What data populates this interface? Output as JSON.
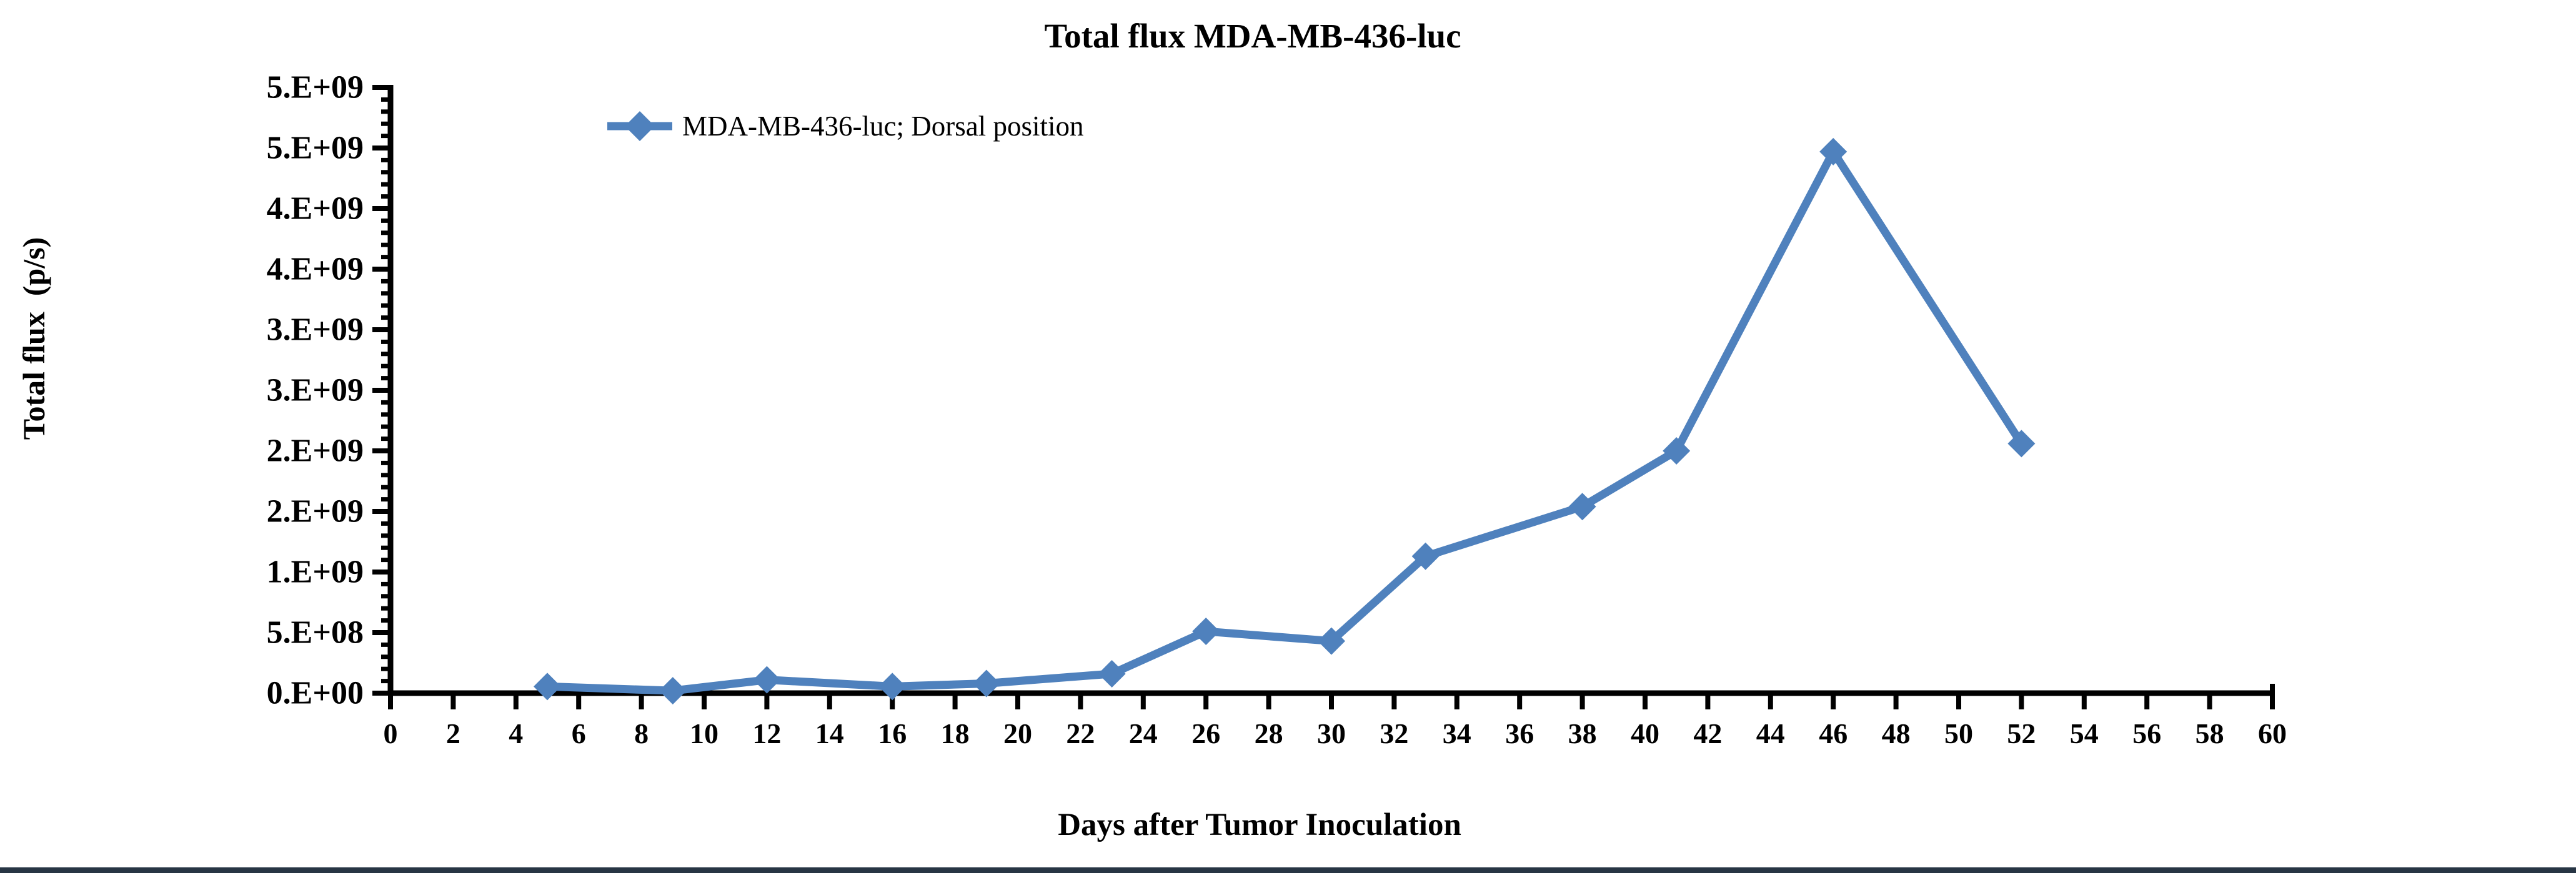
{
  "page": {
    "background_color": "#ffffff",
    "bottom_bar_color": "#273544"
  },
  "chart": {
    "title": "Total flux MDA-MB-436-luc",
    "legend": {
      "label": "MDA-MB-436-luc; Dorsal position",
      "marker": "line-with-diamond"
    },
    "series_color": "#4F81BD",
    "axis_color": "#000000",
    "y_axis_title": "Total flux  (p/s)",
    "x_axis_title": "Days after Tumor Inoculation"
  },
  "chart_data": {
    "type": "line",
    "title": "Total flux MDA-MB-436-luc",
    "xlabel": "Days after Tumor Inoculation",
    "ylabel": "Total flux (p/s)",
    "legend_entries": [
      "MDA-MB-436-luc; Dorsal position"
    ],
    "legend_position": "top-left-inside",
    "grid": false,
    "marker": "diamond",
    "line_color": "#4F81BD",
    "x": [
      5,
      9,
      12,
      16,
      19,
      23,
      26,
      30,
      33,
      38,
      41,
      46,
      52
    ],
    "y": [
      55000000.0,
      20000000.0,
      110000000.0,
      55000000.0,
      80000000.0,
      160000000.0,
      510000000.0,
      430000000.0,
      1130000000.0,
      1540000000.0,
      2000000000.0,
      4470000000.0,
      2060000000.0
    ],
    "xlim": [
      0,
      60
    ],
    "ylim": [
      0,
      5000000000.0
    ],
    "x_tick_values": [
      0,
      2,
      4,
      6,
      8,
      10,
      12,
      14,
      16,
      18,
      20,
      22,
      24,
      26,
      28,
      30,
      32,
      34,
      36,
      38,
      40,
      42,
      44,
      46,
      48,
      50,
      52,
      54,
      56,
      58,
      60
    ],
    "y_tick_values": [
      0,
      500000000.0,
      1000000000.0,
      1500000000.0,
      2000000000.0,
      2500000000.0,
      3000000000.0,
      3500000000.0,
      4000000000.0,
      4500000000.0,
      5000000000.0
    ],
    "y_tick_labels": [
      "0.E+00",
      "5.E+08",
      "1.E+09",
      "2.E+09",
      "2.E+09",
      "3.E+09",
      "3.E+09",
      "4.E+09",
      "4.E+09",
      "5.E+09",
      "5.E+09"
    ],
    "y_minor_tick_step": 100000000.0
  }
}
